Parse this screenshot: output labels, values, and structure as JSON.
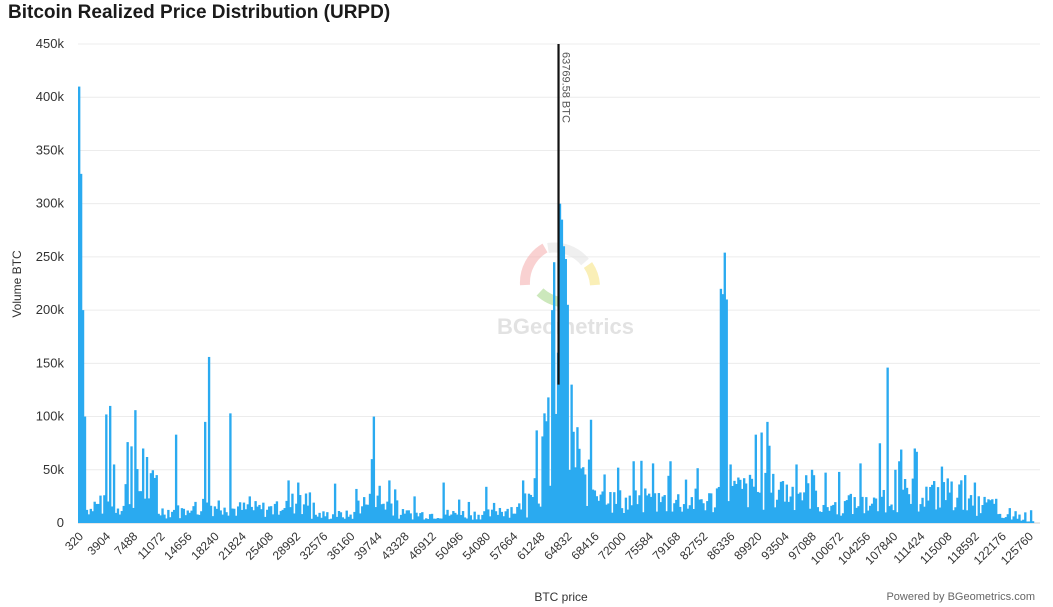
{
  "page": {
    "title": "Bitcoin Realized Price Distribution (URPD)",
    "credit": "Powered by BGeometrics.com",
    "watermark": "BGeometrics"
  },
  "chart_data": {
    "type": "bar",
    "title": "Bitcoin Realized Price Distribution (URPD)",
    "xlabel": "BTC price",
    "ylabel": "Volume BTC",
    "ylim": [
      0,
      450000
    ],
    "y_ticks": [
      0,
      50000,
      100000,
      150000,
      200000,
      250000,
      300000,
      350000,
      400000,
      450000
    ],
    "y_tick_labels": [
      "0",
      "50k",
      "100k",
      "150k",
      "200k",
      "250k",
      "300k",
      "350k",
      "400k",
      "450k"
    ],
    "x_tick_labels": [
      "320",
      "3904",
      "7488",
      "11072",
      "14656",
      "18240",
      "21824",
      "25408",
      "28992",
      "32576",
      "36160",
      "39744",
      "43328",
      "46912",
      "50496",
      "54080",
      "57664",
      "61248",
      "64832",
      "68416",
      "72000",
      "75584",
      "79168",
      "82752",
      "86336",
      "89920",
      "93504",
      "97088",
      "100672",
      "104256",
      "107840",
      "111424",
      "115008",
      "118592",
      "122176",
      "125760"
    ],
    "bin_width": 256,
    "x_start": 320,
    "bar_color": "#2aaaf0",
    "grid": true,
    "annotation": {
      "x": 63769.58,
      "label": "63769.58 BTC",
      "color": "#111111"
    },
    "peaks": [
      {
        "x": 320,
        "value": 410000
      },
      {
        "x": 576,
        "value": 328000
      },
      {
        "x": 832,
        "value": 200000
      },
      {
        "x": 1088,
        "value": 100000
      },
      {
        "x": 2368,
        "value": 20000
      },
      {
        "x": 3904,
        "value": 102000
      },
      {
        "x": 4416,
        "value": 110000
      },
      {
        "x": 4928,
        "value": 55000
      },
      {
        "x": 6720,
        "value": 76000
      },
      {
        "x": 7232,
        "value": 72000
      },
      {
        "x": 7744,
        "value": 106000
      },
      {
        "x": 8768,
        "value": 70000
      },
      {
        "x": 9280,
        "value": 62000
      },
      {
        "x": 10560,
        "value": 45000
      },
      {
        "x": 13120,
        "value": 83000
      },
      {
        "x": 16960,
        "value": 95000
      },
      {
        "x": 17472,
        "value": 156000
      },
      {
        "x": 20288,
        "value": 103000
      },
      {
        "x": 22848,
        "value": 25000
      },
      {
        "x": 27968,
        "value": 40000
      },
      {
        "x": 29248,
        "value": 38000
      },
      {
        "x": 34112,
        "value": 37000
      },
      {
        "x": 36928,
        "value": 32000
      },
      {
        "x": 38976,
        "value": 60000
      },
      {
        "x": 39232,
        "value": 100000
      },
      {
        "x": 41280,
        "value": 40000
      },
      {
        "x": 44608,
        "value": 25000
      },
      {
        "x": 48448,
        "value": 38000
      },
      {
        "x": 50496,
        "value": 22000
      },
      {
        "x": 54080,
        "value": 34000
      },
      {
        "x": 58944,
        "value": 40000
      },
      {
        "x": 60736,
        "value": 87000
      },
      {
        "x": 61760,
        "value": 103000
      },
      {
        "x": 62272,
        "value": 118000
      },
      {
        "x": 62784,
        "value": 200000
      },
      {
        "x": 63040,
        "value": 245000
      },
      {
        "x": 63552,
        "value": 160000
      },
      {
        "x": 63808,
        "value": 300000
      },
      {
        "x": 64064,
        "value": 285000
      },
      {
        "x": 64320,
        "value": 260000
      },
      {
        "x": 64576,
        "value": 248000
      },
      {
        "x": 64832,
        "value": 205000
      },
      {
        "x": 65344,
        "value": 130000
      },
      {
        "x": 66112,
        "value": 90000
      },
      {
        "x": 67904,
        "value": 97000
      },
      {
        "x": 71488,
        "value": 52000
      },
      {
        "x": 73536,
        "value": 58000
      },
      {
        "x": 76096,
        "value": 56000
      },
      {
        "x": 78400,
        "value": 58000
      },
      {
        "x": 82240,
        "value": 22000
      },
      {
        "x": 85056,
        "value": 220000
      },
      {
        "x": 85312,
        "value": 215000
      },
      {
        "x": 85568,
        "value": 254000
      },
      {
        "x": 85824,
        "value": 210000
      },
      {
        "x": 86336,
        "value": 55000
      },
      {
        "x": 89664,
        "value": 83000
      },
      {
        "x": 90432,
        "value": 85000
      },
      {
        "x": 91200,
        "value": 95000
      },
      {
        "x": 95040,
        "value": 55000
      },
      {
        "x": 97088,
        "value": 50000
      },
      {
        "x": 100672,
        "value": 48000
      },
      {
        "x": 103488,
        "value": 56000
      },
      {
        "x": 107072,
        "value": 146000
      },
      {
        "x": 108096,
        "value": 50000
      },
      {
        "x": 110656,
        "value": 70000
      },
      {
        "x": 114240,
        "value": 53000
      },
      {
        "x": 117312,
        "value": 45000
      },
      {
        "x": 118592,
        "value": 38000
      },
      {
        "x": 121152,
        "value": 18000
      },
      {
        "x": 123200,
        "value": 14000
      },
      {
        "x": 125248,
        "value": 10000
      },
      {
        "x": 126016,
        "value": 12000
      }
    ],
    "baseline_segments": [
      {
        "x_from": 320,
        "x_to": 2400,
        "value": 12000
      },
      {
        "x_from": 2400,
        "x_to": 6400,
        "value": 18000
      },
      {
        "x_from": 6400,
        "x_to": 10800,
        "value": 35000
      },
      {
        "x_from": 10800,
        "x_to": 16000,
        "value": 12000
      },
      {
        "x_from": 16000,
        "x_to": 20500,
        "value": 18000
      },
      {
        "x_from": 20500,
        "x_to": 26500,
        "value": 14000
      },
      {
        "x_from": 26500,
        "x_to": 31000,
        "value": 20000
      },
      {
        "x_from": 31000,
        "x_to": 37000,
        "value": 8000
      },
      {
        "x_from": 37000,
        "x_to": 42500,
        "value": 20000
      },
      {
        "x_from": 42500,
        "x_to": 55000,
        "value": 9000
      },
      {
        "x_from": 55000,
        "x_to": 59500,
        "value": 14000
      },
      {
        "x_from": 59500,
        "x_to": 61500,
        "value": 40000
      },
      {
        "x_from": 61500,
        "x_to": 66500,
        "value": 70000
      },
      {
        "x_from": 66500,
        "x_to": 70500,
        "value": 40000
      },
      {
        "x_from": 70500,
        "x_to": 84500,
        "value": 22000
      },
      {
        "x_from": 84500,
        "x_to": 86500,
        "value": 30000
      },
      {
        "x_from": 86500,
        "x_to": 98000,
        "value": 32000
      },
      {
        "x_from": 98000,
        "x_to": 106000,
        "value": 18000
      },
      {
        "x_from": 106000,
        "x_to": 117000,
        "value": 28000
      },
      {
        "x_from": 117000,
        "x_to": 121500,
        "value": 18000
      },
      {
        "x_from": 121500,
        "x_to": 125500,
        "value": 6000
      },
      {
        "x_from": 125500,
        "x_to": 126300,
        "value": 3000
      }
    ]
  }
}
